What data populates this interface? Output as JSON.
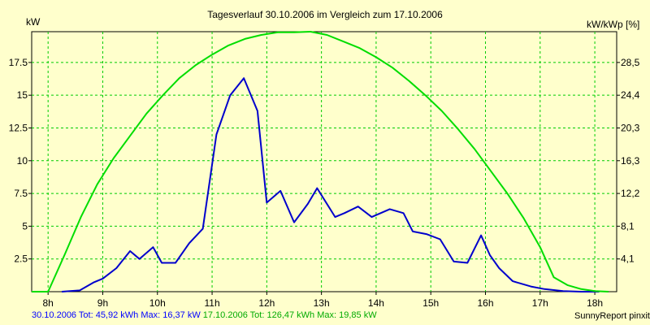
{
  "chart_data": {
    "type": "line",
    "title": "Tagesverlauf 30.10.2006 im Vergleich zum 17.10.2006",
    "ylabel_left": "kW",
    "ylabel_right": "kW/kWp [%]",
    "x_range": [
      7.7,
      18.4
    ],
    "ylim": [
      0,
      19.85
    ],
    "x_ticks": [
      8,
      9,
      10,
      11,
      12,
      13,
      14,
      15,
      16,
      17,
      18
    ],
    "x_tick_labels": [
      "8h",
      "9h",
      "10h",
      "11h",
      "12h",
      "13h",
      "14h",
      "15h",
      "16h",
      "17h",
      "18h"
    ],
    "y_ticks": [
      2.5,
      5,
      7.5,
      10,
      12.5,
      15,
      17.5
    ],
    "y_tick_labels": [
      "2.5",
      "5",
      "7.5",
      "10",
      "12.5",
      "15",
      "17.5"
    ],
    "y2_tick_labels": [
      "4,1",
      "8,1",
      "12,2",
      "16,3",
      "20,3",
      "24,4",
      "28,5"
    ],
    "grid": true,
    "series": [
      {
        "name": "30.10.2006",
        "color": "#0000cc",
        "x": [
          8.25,
          8.58,
          8.83,
          9.0,
          9.25,
          9.5,
          9.67,
          9.92,
          10.08,
          10.33,
          10.58,
          10.83,
          11.08,
          11.33,
          11.58,
          11.83,
          12.0,
          12.25,
          12.5,
          12.75,
          12.92,
          13.25,
          13.42,
          13.67,
          13.92,
          14.25,
          14.5,
          14.67,
          14.92,
          15.17,
          15.42,
          15.67,
          15.92,
          16.08,
          16.25,
          16.5,
          16.83,
          17.08,
          17.42,
          17.75,
          18.08
        ],
        "values": [
          0.0,
          0.1,
          0.7,
          1.0,
          1.8,
          3.1,
          2.5,
          3.4,
          2.2,
          2.2,
          3.7,
          4.8,
          12.0,
          15.0,
          16.3,
          13.8,
          6.8,
          7.7,
          5.3,
          6.7,
          7.9,
          5.7,
          6.0,
          6.5,
          5.7,
          6.3,
          6.0,
          4.6,
          4.4,
          4.0,
          2.3,
          2.2,
          4.3,
          2.8,
          1.8,
          0.8,
          0.4,
          0.2,
          0.05,
          0.0,
          0.0
        ],
        "legend": "30.10.2006 Tot: 45,92 kWh Max: 16,37 kW"
      },
      {
        "name": "17.10.2006",
        "color": "#00dd00",
        "x": [
          7.7,
          8.0,
          8.3,
          8.6,
          8.9,
          9.2,
          9.5,
          9.8,
          10.1,
          10.4,
          10.7,
          11.0,
          11.3,
          11.6,
          11.9,
          12.2,
          12.5,
          12.8,
          13.1,
          13.4,
          13.7,
          14.0,
          14.3,
          14.6,
          14.9,
          15.2,
          15.5,
          15.8,
          16.1,
          16.4,
          16.7,
          17.0,
          17.25,
          17.5,
          17.75,
          18.0,
          18.25
        ],
        "values": [
          0.0,
          0.0,
          2.8,
          5.7,
          8.2,
          10.2,
          11.9,
          13.6,
          15.0,
          16.3,
          17.3,
          18.1,
          18.8,
          19.3,
          19.6,
          19.8,
          19.8,
          19.85,
          19.6,
          19.1,
          18.6,
          17.9,
          17.1,
          16.1,
          15.0,
          13.8,
          12.4,
          10.9,
          9.2,
          7.5,
          5.6,
          3.4,
          1.1,
          0.5,
          0.2,
          0.05,
          0.0
        ],
        "legend": "17.10.2006 Tot: 126,47 kWh Max: 19,85 kW"
      }
    ]
  },
  "credit": "SunnyReport pinxit"
}
